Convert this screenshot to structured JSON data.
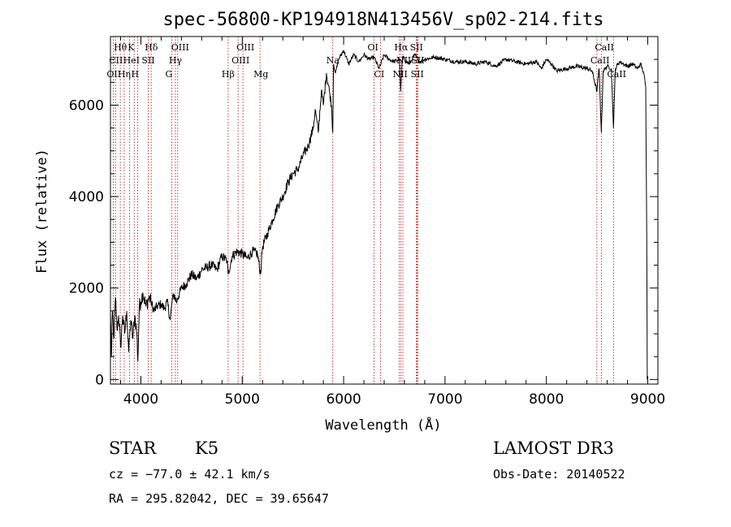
{
  "chart_data": {
    "type": "line",
    "title": "spec-56800-KP194918N413456V_sp02-214.fits",
    "xlabel": "Wavelength (Å)",
    "ylabel": "Flux (relative)",
    "xlim": [
      3700,
      9100
    ],
    "ylim": [
      -100,
      7500
    ],
    "x_ticks": [
      4000,
      5000,
      6000,
      7000,
      8000,
      9000
    ],
    "y_ticks": [
      0,
      2000,
      4000,
      6000
    ],
    "x_tick_labels": [
      "4000",
      "5000",
      "6000",
      "7000",
      "8000",
      "9000"
    ],
    "y_tick_labels": [
      "0",
      "2000",
      "4000",
      "6000"
    ],
    "series": [
      {
        "name": "flux",
        "x": [
          3700,
          3710,
          3720,
          3735,
          3750,
          3765,
          3780,
          3800,
          3820,
          3840,
          3860,
          3880,
          3900,
          3920,
          3940,
          3960,
          3970,
          3985,
          4000,
          4020,
          4050,
          4080,
          4100,
          4130,
          4160,
          4200,
          4230,
          4260,
          4290,
          4310,
          4330,
          4350,
          4400,
          4450,
          4500,
          4550,
          4600,
          4650,
          4700,
          4750,
          4800,
          4850,
          4860,
          4900,
          4950,
          5000,
          5050,
          5100,
          5150,
          5180,
          5200,
          5250,
          5300,
          5350,
          5400,
          5450,
          5500,
          5550,
          5600,
          5650,
          5700,
          5720,
          5750,
          5780,
          5800,
          5830,
          5860,
          5880,
          5893,
          5900,
          5920,
          5950,
          6000,
          6050,
          6100,
          6150,
          6200,
          6250,
          6300,
          6350,
          6400,
          6450,
          6500,
          6550,
          6563,
          6580,
          6620,
          6650,
          6700,
          6750,
          6800,
          6900,
          7000,
          7100,
          7200,
          7300,
          7400,
          7500,
          7600,
          7700,
          7800,
          7900,
          7950,
          8000,
          8050,
          8100,
          8200,
          8300,
          8400,
          8450,
          8498,
          8520,
          8542,
          8560,
          8600,
          8640,
          8662,
          8680,
          8720,
          8760,
          8800,
          8850,
          8900,
          8930,
          8960,
          8980,
          8990,
          8995
        ],
        "values": [
          1400,
          500,
          1500,
          900,
          1800,
          1100,
          1400,
          700,
          1400,
          1000,
          1500,
          600,
          1300,
          900,
          1400,
          1000,
          400,
          1600,
          1700,
          1900,
          1600,
          1800,
          1700,
          1500,
          1600,
          1650,
          1550,
          1700,
          1300,
          1750,
          1850,
          1700,
          2000,
          2100,
          2300,
          2200,
          2400,
          2450,
          2500,
          2400,
          2700,
          2600,
          2300,
          2700,
          2800,
          2750,
          2650,
          2800,
          2750,
          2300,
          2900,
          3200,
          3500,
          3800,
          4000,
          4300,
          4500,
          4600,
          4900,
          5100,
          5500,
          5900,
          5400,
          6300,
          6000,
          6700,
          6300,
          6000,
          5400,
          6900,
          6700,
          7000,
          7200,
          6900,
          7100,
          6950,
          7100,
          7000,
          7050,
          6800,
          7100,
          7000,
          6950,
          7000,
          6300,
          7050,
          6950,
          6900,
          7100,
          6950,
          7000,
          7050,
          7000,
          6950,
          6950,
          6900,
          6950,
          6850,
          7000,
          6950,
          6900,
          6950,
          6800,
          7000,
          6900,
          6750,
          6800,
          6850,
          6800,
          6750,
          6300,
          6800,
          5400,
          6750,
          6850,
          6800,
          5500,
          6800,
          6950,
          6900,
          6850,
          6900,
          6800,
          6900,
          6700,
          6400,
          3000,
          0
        ]
      }
    ],
    "spectral_lines": [
      {
        "label": "Hθ",
        "x": 3797,
        "row": 1
      },
      {
        "label": "CII",
        "x": 3750,
        "row": 2
      },
      {
        "label": "OII",
        "x": 3727,
        "row": 3
      },
      {
        "label": "K",
        "x": 3934,
        "row": 1
      },
      {
        "label": "HeI",
        "x": 3889,
        "row": 2
      },
      {
        "label": "Hη",
        "x": 3835,
        "row": 3
      },
      {
        "label": "Hδ",
        "x": 4102,
        "row": 1
      },
      {
        "label": "SII",
        "x": 4072,
        "row": 2
      },
      {
        "label": "H",
        "x": 3968,
        "row": 3
      },
      {
        "label": "OIII",
        "x": 4363,
        "row": 1
      },
      {
        "label": "Hγ",
        "x": 4340,
        "row": 2
      },
      {
        "label": "G",
        "x": 4305,
        "row": 3
      },
      {
        "label": "OIII",
        "x": 5007,
        "row": 1
      },
      {
        "label": "OIII",
        "x": 4959,
        "row": 2
      },
      {
        "label": "Hβ",
        "x": 4861,
        "row": 3
      },
      {
        "label": "Mg",
        "x": 5175,
        "row": 3
      },
      {
        "label": "Na",
        "x": 5893,
        "row": 2
      },
      {
        "label": "OI",
        "x": 6300,
        "row": 1
      },
      {
        "label": "CI",
        "x": 6364,
        "row": 3
      },
      {
        "label": "Hα",
        "x": 6563,
        "row": 1
      },
      {
        "label": "SII",
        "x": 6717,
        "row": 1
      },
      {
        "label": "NII",
        "x": 6584,
        "row": 2
      },
      {
        "label": "SII",
        "x": 6731,
        "row": 2
      },
      {
        "label": "NII",
        "x": 6548,
        "row": 3
      },
      {
        "label": "SII",
        "x": 6725,
        "row": 3
      },
      {
        "label": "CaII",
        "x": 8542,
        "row": 1
      },
      {
        "label": "CaII",
        "x": 8498,
        "row": 2
      },
      {
        "label": "CaII",
        "x": 8662,
        "row": 3
      }
    ]
  },
  "info": {
    "class": "STAR",
    "subclass": "K5",
    "redshift": "cz = −77.0 ± 42.1 km/s",
    "coords": "RA = 295.82042, DEC =  39.65647",
    "survey": "LAMOST DR3",
    "obs_date": "Obs-Date: 20140522"
  },
  "colors": {
    "line_marker": "#c00000",
    "spectrum": "#000000"
  }
}
